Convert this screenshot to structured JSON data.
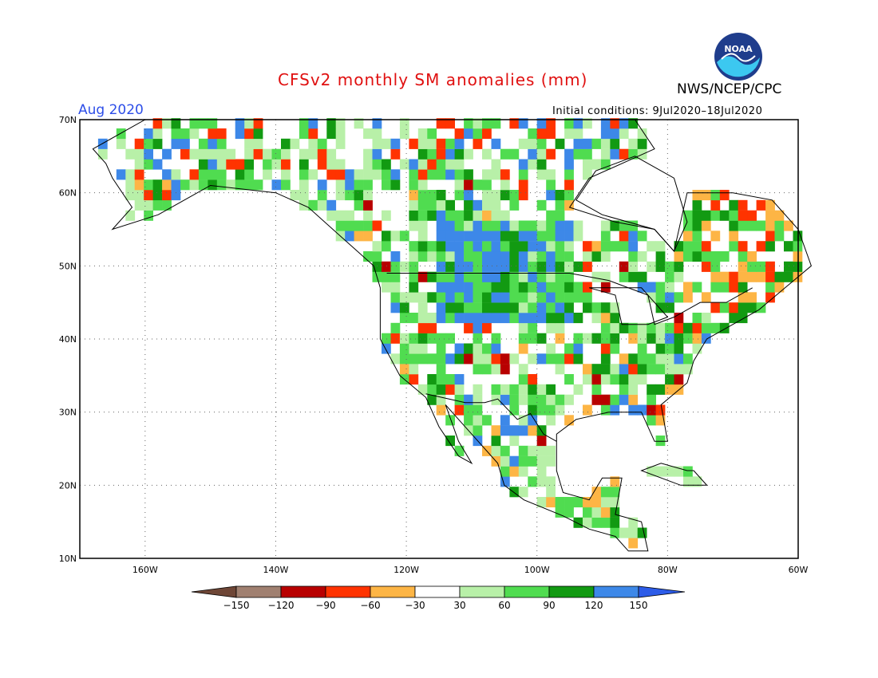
{
  "header": {
    "title": "CFSv2 monthly SM anomalies (mm)",
    "agency": "NWS/NCEP/CPC",
    "valid_month": "Aug 2020",
    "initial_conditions": "Initial conditions: 9Jul2020–18Jul2020",
    "logo_text": "NOAA",
    "title_color": "#e01010",
    "valid_color": "#2d4ee8"
  },
  "map": {
    "projection": "equirectangular",
    "lon_range": [
      -170,
      -60
    ],
    "lat_range": [
      10,
      70
    ],
    "lon_ticks": [
      "160W",
      "140W",
      "120W",
      "100W",
      "80W",
      "60W"
    ],
    "lat_ticks": [
      "70N",
      "60N",
      "50N",
      "40N",
      "30N",
      "20N",
      "10N"
    ],
    "gridlines": "dotted"
  },
  "legend": {
    "labels": [
      "−150",
      "−120",
      "−90",
      "−60",
      "−30",
      "30",
      "60",
      "90",
      "120",
      "150"
    ],
    "colors": [
      "#6e4636",
      "#a08070",
      "#b80000",
      "#ff3300",
      "#fdb545",
      "#ffffff",
      "#b8f0a8",
      "#50dc50",
      "#129a12",
      "#3d88e8",
      "#2d5ce8"
    ]
  }
}
